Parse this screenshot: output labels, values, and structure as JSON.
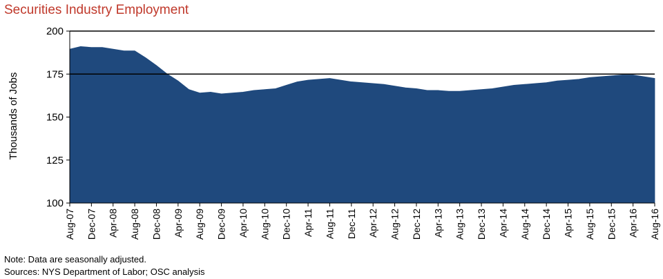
{
  "chart_data": {
    "type": "area",
    "title": "Securities Industry Employment",
    "ylabel": "Thousands of Jobs",
    "xlabel": "",
    "ylim": [
      100,
      200
    ],
    "yticks": [
      100,
      125,
      150,
      175,
      200
    ],
    "reference_lines": [
      175,
      200
    ],
    "color": "#1f497d",
    "x": [
      "Aug-07",
      "Oct-07",
      "Dec-07",
      "Feb-08",
      "Apr-08",
      "Jun-08",
      "Aug-08",
      "Oct-08",
      "Dec-08",
      "Feb-09",
      "Apr-09",
      "Jun-09",
      "Aug-09",
      "Oct-09",
      "Dec-09",
      "Feb-10",
      "Apr-10",
      "Jun-10",
      "Aug-10",
      "Oct-10",
      "Dec-10",
      "Feb-11",
      "Apr-11",
      "Jun-11",
      "Aug-11",
      "Oct-11",
      "Dec-11",
      "Feb-12",
      "Apr-12",
      "Jun-12",
      "Aug-12",
      "Oct-12",
      "Dec-12",
      "Feb-13",
      "Apr-13",
      "Jun-13",
      "Aug-13",
      "Oct-13",
      "Dec-13",
      "Feb-14",
      "Apr-14",
      "Jun-14",
      "Aug-14",
      "Oct-14",
      "Dec-14",
      "Feb-15",
      "Apr-15",
      "Jun-15",
      "Aug-15",
      "Oct-15",
      "Dec-15",
      "Feb-16",
      "Apr-16",
      "Jun-16",
      "Aug-16"
    ],
    "values": [
      189.5,
      191,
      190.5,
      190.5,
      189.5,
      188.5,
      188.5,
      184.5,
      180,
      175,
      171,
      166,
      164,
      164.5,
      163.5,
      164,
      164.5,
      165.5,
      166,
      166.5,
      168.5,
      170.5,
      171.5,
      172,
      172.5,
      171.5,
      170.5,
      170,
      169.5,
      169,
      168,
      167,
      166.5,
      165.5,
      165.5,
      165,
      165,
      165.5,
      166,
      166.5,
      167.5,
      168.5,
      169,
      169.5,
      170,
      171,
      171.5,
      172,
      173,
      173.5,
      174,
      174.5,
      174.5,
      173.5,
      172.5
    ],
    "xticks": [
      "Aug-07",
      "Dec-07",
      "Apr-08",
      "Aug-08",
      "Dec-08",
      "Apr-09",
      "Aug-09",
      "Dec-09",
      "Apr-10",
      "Aug-10",
      "Dec-10",
      "Apr-11",
      "Aug-11",
      "Dec-11",
      "Apr-12",
      "Aug-12",
      "Dec-12",
      "Apr-13",
      "Aug-13",
      "Dec-13",
      "Apr-14",
      "Aug-14",
      "Dec-14",
      "Apr-15",
      "Aug-15",
      "Dec-15",
      "Apr-16",
      "Aug-16"
    ]
  },
  "note": "Note: Data are seasonally adjusted.",
  "sources": "Sources: NYS Department of Labor; OSC analysis"
}
